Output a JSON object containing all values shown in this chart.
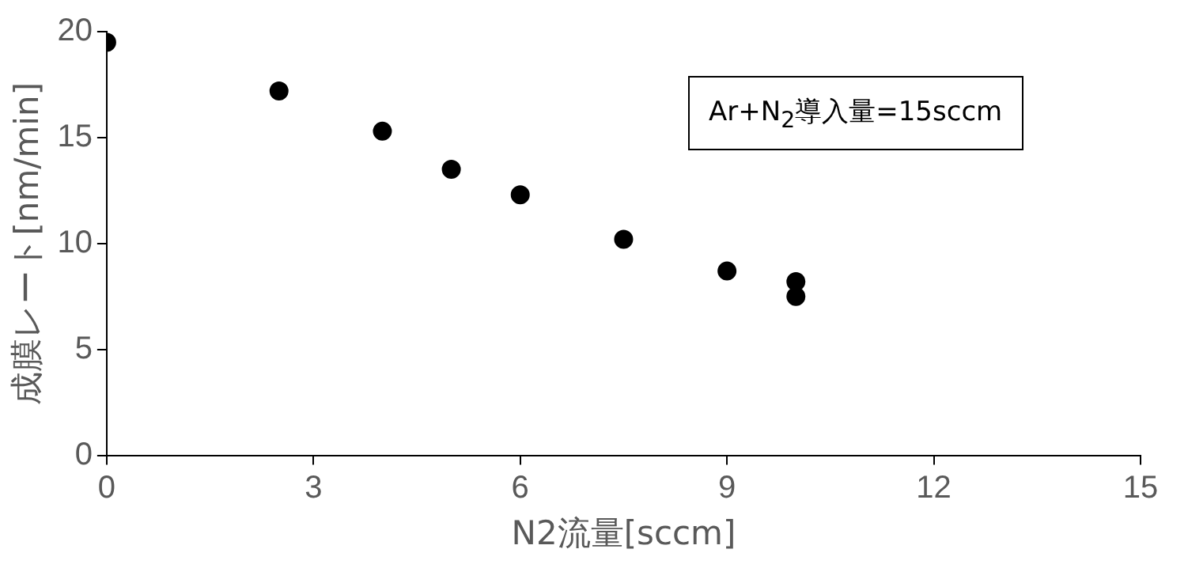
{
  "chart_data": {
    "type": "scatter",
    "xlabel": "N2流量[sccm]",
    "ylabel": "成膜レート[nm/min]",
    "x": [
      0,
      2.5,
      4,
      5,
      6,
      7.5,
      9,
      10,
      10
    ],
    "series": [
      {
        "color": "#000000",
        "values": [
          19.5,
          17.2,
          15.3,
          13.5,
          12.3,
          10.2,
          8.7,
          8.2,
          7.5
        ]
      }
    ],
    "xlim": [
      0,
      15
    ],
    "xticks": [
      0,
      3,
      6,
      9,
      12,
      15
    ],
    "ylim": [
      0,
      20
    ],
    "yticks": [
      0,
      5,
      10,
      15,
      20
    ],
    "grid": false,
    "legend": false,
    "marker": "circle",
    "annotations": [
      "Ar+N$_{2}$導入量=15sccm"
    ]
  }
}
